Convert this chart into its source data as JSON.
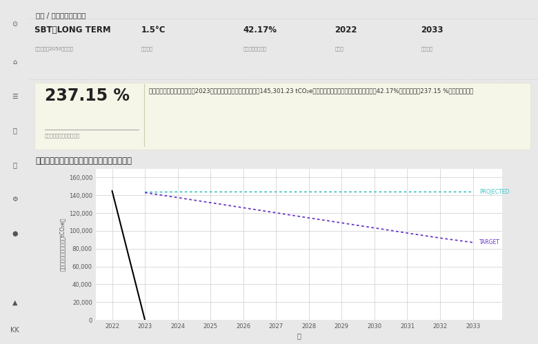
{
  "page_title": "削減 / 脱炭素パスウェイ",
  "metrics": [
    {
      "label": "SBT・LONG TERM",
      "sublabel": "対応規格（2050年比較）"
    },
    {
      "label": "1.5°C",
      "sublabel": "目標気温"
    },
    {
      "label": "42.17%",
      "sublabel": "目標総排出削減量"
    },
    {
      "label": "2022",
      "sublabel": "基準年"
    },
    {
      "label": "2033",
      "sublabel": "最終年度"
    }
  ],
  "achievement": "237.15 %",
  "achievement_sublabel": "目標削減達成量の達成状況",
  "achievement_description": "基準年度と比較して、現在（2023年）の温室効果ガス排出量は、145,301.23 tCO₂e減少しています。目標トータル削減量（42.17%）に対して、237.15 %の達成率です。",
  "chart_title": "目標パスウェイ：総削減量（年ごとの推移）",
  "xlabel": "年",
  "ylabel": "総排出削減パスウェイ（tCO₂e）",
  "years": [
    2022,
    2023,
    2024,
    2025,
    2026,
    2027,
    2028,
    2029,
    2030,
    2031,
    2032,
    2033
  ],
  "actual_color": "#000000",
  "projected_color": "#40c4c4",
  "target_color": "#6633cc",
  "ylim": [
    0,
    170000
  ],
  "yticks": [
    0,
    20000,
    40000,
    60000,
    80000,
    100000,
    120000,
    140000,
    160000
  ],
  "bg_color": "#ffffff",
  "panel_bg": "#f5f5e8",
  "grid_color": "#cccccc",
  "sidebar_color": "#e8e8e8"
}
